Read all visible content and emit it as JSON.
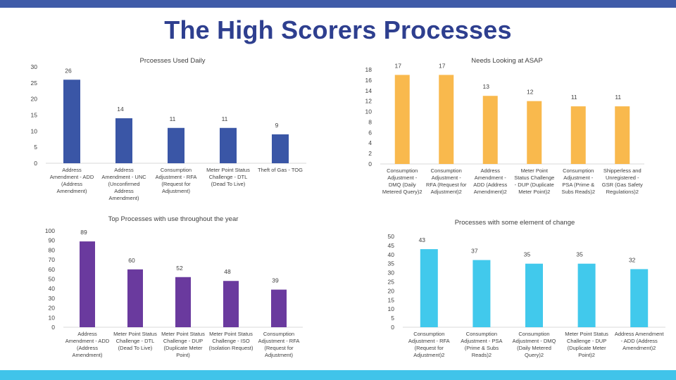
{
  "page": {
    "title": "The High Scorers Processes",
    "colors": {
      "top_band": "#3f5ba8",
      "bottom_band": "#40c4ea",
      "title": "#2e3f8f"
    }
  },
  "chart_data": [
    {
      "type": "bar",
      "title": "Prcoesses Used Daily",
      "color": "#3a56a6",
      "ylim": [
        0,
        30
      ],
      "yticks": [
        0,
        5,
        10,
        15,
        20,
        25,
        30
      ],
      "categories": [
        [
          "Address",
          "Amendment - ADD",
          "(Address",
          "Amendment)"
        ],
        [
          "Address",
          "Amendment - UNC",
          "(Unconfirmed",
          "Address",
          "Amendment)"
        ],
        [
          "Consumption",
          "Adjustment - RFA",
          "(Request for",
          "Adjustment)"
        ],
        [
          "Meter Point Status",
          "Challenge - DTL",
          "(Dead To Live)"
        ],
        [
          "Theft of Gas - TOG"
        ]
      ],
      "values": [
        26,
        14,
        11,
        11,
        9
      ],
      "grid": false,
      "legend": "none"
    },
    {
      "type": "bar",
      "title": "Needs Looking at ASAP",
      "color": "#f9b94d",
      "ylim": [
        0,
        18
      ],
      "yticks": [
        0,
        2,
        4,
        6,
        8,
        10,
        12,
        14,
        16,
        18
      ],
      "categories": [
        [
          "Consumption",
          "Adjustment -",
          "DMQ (Daily",
          "Metered Query)2"
        ],
        [
          "Consumption",
          "Adjustment -",
          "RFA (Request for",
          "Adjustment)2"
        ],
        [
          "Address",
          "Amendment -",
          "ADD (Address",
          "Amendment)2"
        ],
        [
          "Meter Point",
          "Status Challenge",
          "- DUP (Duplicate",
          "Meter Point)2"
        ],
        [
          "Consumption",
          "Adjustment -",
          "PSA (Prime &",
          "Subs Reads)2"
        ],
        [
          "Shipperless and",
          "Unregistered -",
          "GSR (Gas Safety",
          "Regulations)2"
        ]
      ],
      "values": [
        17,
        17,
        13,
        12,
        11,
        11
      ],
      "grid": false,
      "legend": "none"
    },
    {
      "type": "bar",
      "title": "Top Processes with use throughout the year",
      "color": "#6a3a9e",
      "ylim": [
        0,
        100
      ],
      "yticks": [
        0,
        10,
        20,
        30,
        40,
        50,
        60,
        70,
        80,
        90,
        100
      ],
      "categories": [
        [
          "Address",
          "Amendment - ADD",
          "(Address",
          "Amendment)"
        ],
        [
          "Meter Point Status",
          "Challenge - DTL",
          "(Dead To Live)"
        ],
        [
          "Meter Point Status",
          "Challenge - DUP",
          "(Duplicate Meter",
          "Point)"
        ],
        [
          "Meter Point Status",
          "Challenge - ISO",
          "(Isolation Request)"
        ],
        [
          "Consumption",
          "Adjustment - RFA",
          "(Request for",
          "Adjustment)"
        ]
      ],
      "values": [
        89,
        60,
        52,
        48,
        39
      ],
      "grid": false,
      "legend": "none"
    },
    {
      "type": "bar",
      "title": "Processes with some element of change",
      "color": "#41c9ec",
      "ylim": [
        0,
        50
      ],
      "yticks": [
        0,
        5,
        10,
        15,
        20,
        25,
        30,
        35,
        40,
        45,
        50
      ],
      "categories": [
        [
          "Consumption",
          "Adjustment - RFA",
          "(Request for",
          "Adjustment)2"
        ],
        [
          "Consumption",
          "Adjustment - PSA",
          "(Prime & Subs",
          "Reads)2"
        ],
        [
          "Consumption",
          "Adjustment - DMQ",
          "(Daily Metered",
          "Query)2"
        ],
        [
          "Meter Point Status",
          "Challenge - DUP",
          "(Duplicate Meter",
          "Point)2"
        ],
        [
          "Address Amendment",
          "- ADD (Address",
          "Amendment)2"
        ]
      ],
      "values": [
        43,
        37,
        35,
        35,
        32
      ],
      "grid": false,
      "legend": "none"
    }
  ]
}
